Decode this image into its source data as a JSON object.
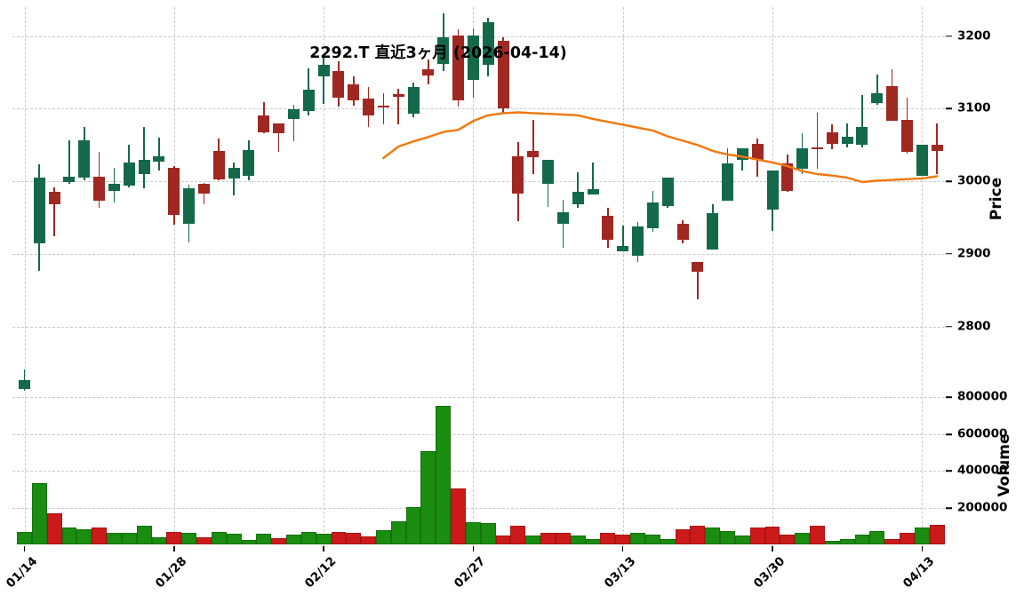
{
  "title": "2292.T 直近3ヶ月 (2026-04-14)",
  "chart_data": {
    "type": "candlestick+volume",
    "title": "2292.T 直近3ヶ月 (2026-04-14)",
    "legend_position": "none",
    "grid": "dashed",
    "price_axis": {
      "label": "Price",
      "side": "right",
      "ticks": [
        3200,
        3100,
        3000,
        2900,
        2800
      ],
      "ylim": [
        2704,
        3240
      ]
    },
    "volume_axis": {
      "label": "Volume",
      "side": "right",
      "ticks": [
        800000,
        600000,
        400000,
        200000
      ],
      "ylim": [
        0,
        870000
      ]
    },
    "x_axis": {
      "tick_labels": [
        "01/14",
        "01/28",
        "02/12",
        "02/27",
        "03/13",
        "03/30",
        "04/13"
      ],
      "tick_indices": [
        0,
        10,
        20,
        30,
        40,
        50,
        60
      ],
      "num_points": 62
    },
    "candles_ohlc": [
      [
        2714,
        2741,
        2712,
        2726
      ],
      [
        2915,
        3024,
        2877,
        3005
      ],
      [
        2985,
        2992,
        2924,
        2968
      ],
      [
        2999,
        3056,
        2996,
        3006
      ],
      [
        3005,
        3075,
        3002,
        3056
      ],
      [
        3006,
        3041,
        2964,
        2973
      ],
      [
        2987,
        3019,
        2971,
        2996
      ],
      [
        2994,
        3051,
        2992,
        3026
      ],
      [
        3010,
        3075,
        2990,
        3030
      ],
      [
        3027,
        3060,
        3015,
        3035
      ],
      [
        3019,
        3021,
        2940,
        2954
      ],
      [
        2942,
        2995,
        2916,
        2991
      ],
      [
        2997,
        2998,
        2968,
        2983
      ],
      [
        3042,
        3059,
        3001,
        3003
      ],
      [
        3004,
        3026,
        2981,
        3018
      ],
      [
        3008,
        3056,
        3001,
        3043
      ],
      [
        3091,
        3109,
        3066,
        3068
      ],
      [
        3080,
        3080,
        3040,
        3066
      ],
      [
        3086,
        3105,
        3055,
        3099
      ],
      [
        3097,
        3156,
        3091,
        3126
      ],
      [
        3144,
        3172,
        3107,
        3161
      ],
      [
        3152,
        3165,
        3103,
        3115
      ],
      [
        3133,
        3145,
        3104,
        3111
      ],
      [
        3114,
        3130,
        3075,
        3091
      ],
      [
        3104,
        3121,
        3079,
        3103
      ],
      [
        3120,
        3128,
        3079,
        3117
      ],
      [
        3093,
        3136,
        3088,
        3130
      ],
      [
        3154,
        3168,
        3134,
        3146
      ],
      [
        3162,
        3231,
        3152,
        3199
      ],
      [
        3201,
        3209,
        3103,
        3111
      ],
      [
        3140,
        3211,
        3115,
        3201
      ],
      [
        3160,
        3225,
        3144,
        3219
      ],
      [
        3193,
        3199,
        3095,
        3101
      ],
      [
        3035,
        3054,
        2945,
        2983
      ],
      [
        3042,
        3085,
        3010,
        3033
      ],
      [
        2997,
        3030,
        2965,
        3030
      ],
      [
        2942,
        2975,
        2909,
        2958
      ],
      [
        2969,
        3013,
        2964,
        2985
      ],
      [
        2982,
        3026,
        2982,
        2989
      ],
      [
        2953,
        2964,
        2909,
        2919
      ],
      [
        2903,
        2939,
        2903,
        2911
      ],
      [
        2897,
        2944,
        2889,
        2938
      ],
      [
        2935,
        2987,
        2930,
        2971
      ],
      [
        2966,
        3005,
        2963,
        3005
      ],
      [
        2942,
        2946,
        2915,
        2920
      ],
      [
        2889,
        2889,
        2838,
        2875
      ],
      [
        2906,
        2968,
        2906,
        2956
      ],
      [
        2973,
        3045,
        2973,
        3025
      ],
      [
        3029,
        3045,
        3015,
        3045
      ],
      [
        3052,
        3059,
        3006,
        3029
      ],
      [
        2961,
        3015,
        2932,
        3015
      ],
      [
        3025,
        3037,
        2985,
        2987
      ],
      [
        3017,
        3066,
        3010,
        3045
      ],
      [
        3047,
        3094,
        3017,
        3044
      ],
      [
        3067,
        3079,
        3044,
        3052
      ],
      [
        3052,
        3080,
        3047,
        3061
      ],
      [
        3050,
        3119,
        3047,
        3075
      ],
      [
        3108,
        3147,
        3105,
        3121
      ],
      [
        3131,
        3154,
        3083,
        3083
      ],
      [
        3085,
        3115,
        3038,
        3040
      ],
      [
        3007,
        3050,
        3007,
        3050
      ],
      [
        3051,
        3080,
        3010,
        3042
      ]
    ],
    "volumes": [
      72000,
      337000,
      169000,
      96000,
      83000,
      96000,
      63000,
      63000,
      103000,
      43000,
      71000,
      66000,
      39000,
      71000,
      59000,
      28000,
      59000,
      37000,
      56000,
      69000,
      59000,
      69000,
      67000,
      45000,
      80000,
      128000,
      205000,
      506000,
      752000,
      305000,
      123000,
      116000,
      53000,
      104000,
      51000,
      67000,
      67000,
      51000,
      32000,
      67000,
      56000,
      67000,
      56000,
      32000,
      83000,
      104000,
      93000,
      77000,
      51000,
      96000,
      100000,
      56000,
      67000,
      104000,
      24000,
      32000,
      56000,
      77000,
      32000,
      67000,
      96000,
      108000
    ],
    "moving_average": {
      "name": "MA25",
      "start_index": 24,
      "values": [
        3032,
        3048,
        3055,
        3061,
        3068,
        3071,
        3083,
        3091,
        3094,
        3095,
        3094,
        3093,
        3092,
        3091,
        3086,
        3082,
        3078,
        3074,
        3070,
        3062,
        3056,
        3050,
        3042,
        3037,
        3034,
        3030,
        3026,
        3021,
        3014,
        3010,
        3008,
        3005,
        2999,
        3001,
        3002,
        3003,
        3004,
        3007
      ]
    },
    "colors": {
      "candle_up": "#14694b",
      "candle_down": "#a02822",
      "volume_up": "#1a8c10",
      "volume_down": "#cc1a1a",
      "volume_color_rule": "close vs previous close",
      "ma_line": "#f3770b",
      "grid": "#c9c9c9",
      "text": "#000000",
      "background": "#ffffff"
    }
  }
}
